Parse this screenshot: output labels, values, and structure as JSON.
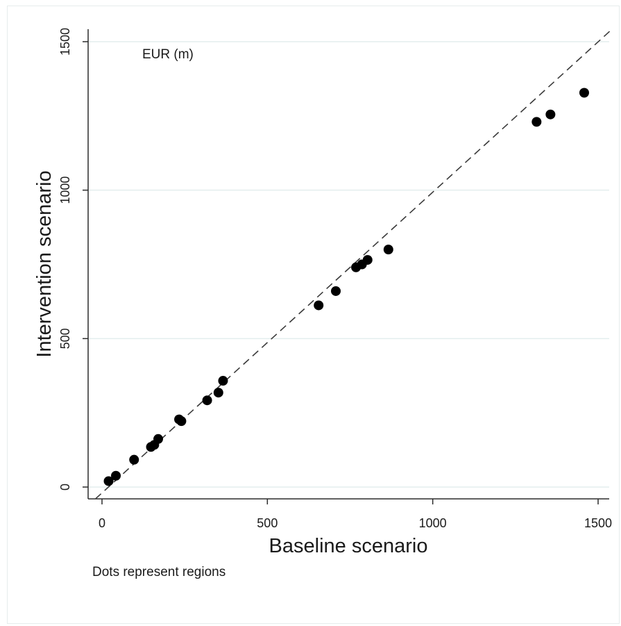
{
  "chart_data": {
    "type": "scatter",
    "title": "",
    "annotation": "EUR (m)",
    "xlabel": "Baseline scenario",
    "ylabel": "Intervention scenario",
    "note": "Dots represent regions",
    "xlim": [
      -20,
      1540
    ],
    "ylim": [
      -40,
      1540
    ],
    "xticks": [
      "0",
      "500",
      "1000",
      "1500"
    ],
    "yticks": [
      "0",
      "500",
      "1000",
      "1500"
    ],
    "grid": "horizontal",
    "reference_line": {
      "style": "dashed",
      "from": [
        -20,
        -40
      ],
      "to": [
        1540,
        1540
      ]
    },
    "points": [
      {
        "x": 20,
        "y": 20
      },
      {
        "x": 42,
        "y": 38
      },
      {
        "x": 97,
        "y": 92
      },
      {
        "x": 148,
        "y": 135
      },
      {
        "x": 158,
        "y": 142
      },
      {
        "x": 170,
        "y": 162
      },
      {
        "x": 233,
        "y": 228
      },
      {
        "x": 240,
        "y": 222
      },
      {
        "x": 318,
        "y": 292
      },
      {
        "x": 352,
        "y": 318
      },
      {
        "x": 366,
        "y": 358
      },
      {
        "x": 655,
        "y": 612
      },
      {
        "x": 707,
        "y": 660
      },
      {
        "x": 768,
        "y": 740
      },
      {
        "x": 786,
        "y": 750
      },
      {
        "x": 803,
        "y": 765
      },
      {
        "x": 866,
        "y": 800
      },
      {
        "x": 1314,
        "y": 1230
      },
      {
        "x": 1356,
        "y": 1255
      },
      {
        "x": 1458,
        "y": 1328
      }
    ]
  }
}
